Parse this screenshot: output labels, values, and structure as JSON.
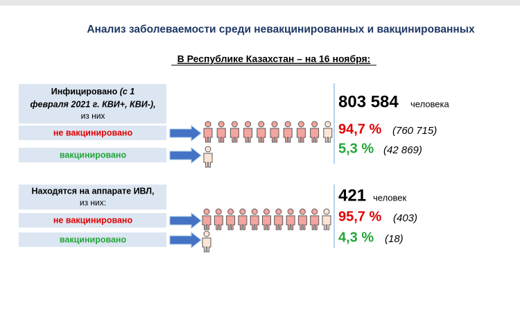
{
  "title": "Анализ заболеваемости среди невакцинированных и вакцинированных",
  "subtitle": "В Республике Казахстан – на 16 ноября:",
  "blocks": [
    {
      "label": [
        "Инфицировано",
        "(с 1",
        "февраля 2021 г. КВИ+, КВИ-),",
        "из них"
      ],
      "total": "803 584",
      "unit": "человека",
      "rows": [
        {
          "label": "не вакцинировано",
          "percent": "94,7 %",
          "count": "(760 715)"
        },
        {
          "label": "вакцинировано",
          "percent": "5,3 %",
          "count": "(42 869)"
        }
      ]
    },
    {
      "label": [
        "Находятся на аппарате ИВЛ,",
        "из них:"
      ],
      "total": "421",
      "unit": "человек",
      "rows": [
        {
          "label": "не вакцинировано",
          "percent": "95,7 %",
          "count": "(403)"
        },
        {
          "label": "вакцинировано",
          "percent": "4,3 %",
          "count": "(18)"
        }
      ]
    }
  ]
}
